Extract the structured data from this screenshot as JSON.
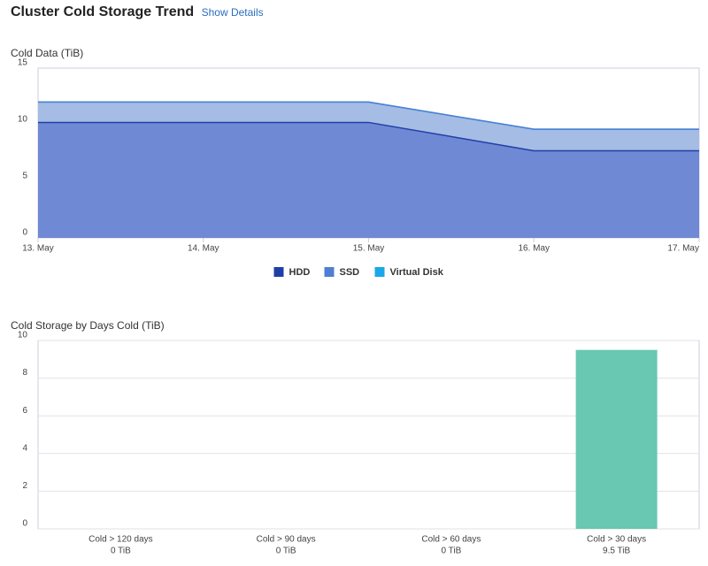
{
  "header": {
    "title": "Cluster Cold Storage Trend",
    "link": "Show Details"
  },
  "chart_data": [
    {
      "type": "area",
      "stacked": true,
      "title": "Cold Data (TiB)",
      "categories": [
        "13. May",
        "14. May",
        "15. May",
        "16. May",
        "17. May"
      ],
      "series": [
        {
          "name": "HDD",
          "color": "#1f3fa8",
          "fill": "#7089d4",
          "values": [
            10.2,
            10.2,
            10.2,
            7.7,
            7.7
          ]
        },
        {
          "name": "SSD",
          "color": "#4f7fd2",
          "fill": "#a5bce4",
          "values": [
            1.8,
            1.8,
            1.8,
            1.9,
            1.9
          ]
        },
        {
          "name": "Virtual Disk",
          "color": "#1aa8e8",
          "fill": "#8fd3f2",
          "values": [
            0,
            0,
            0,
            0,
            0
          ]
        }
      ],
      "ylim": [
        0,
        15
      ],
      "yticks": [
        0,
        5,
        10,
        15
      ],
      "grid": false,
      "legend": "bottom"
    },
    {
      "type": "bar",
      "title": "Cold Storage by Days Cold (TiB)",
      "categories": [
        "Cold > 120 days",
        "Cold > 90 days",
        "Cold > 60 days",
        "Cold > 30 days"
      ],
      "values": [
        0,
        0,
        0,
        9.5
      ],
      "value_labels": [
        "0 TiB",
        "0 TiB",
        "0 TiB",
        "9.5 TiB"
      ],
      "color": "#68c8b2",
      "ylim": [
        0,
        10
      ],
      "yticks": [
        0,
        2,
        4,
        6,
        8,
        10
      ],
      "grid": true
    }
  ]
}
